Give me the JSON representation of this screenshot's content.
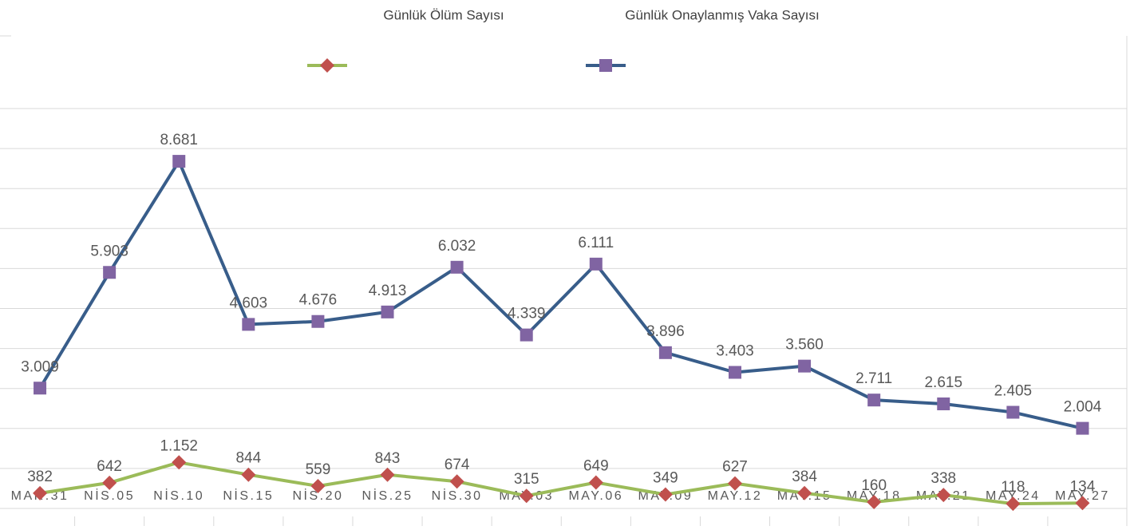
{
  "chart_data": {
    "type": "line",
    "categories": [
      "MAR.31",
      "NİS.05",
      "NİS.10",
      "NİS.15",
      "NİS.20",
      "NİS.25",
      "NİS.30",
      "MAY.03",
      "MAY.06",
      "MAY.09",
      "MAY.12",
      "MAY.15",
      "MAY.18",
      "MAY.21",
      "MAY.24",
      "MAY.27"
    ],
    "series": [
      {
        "name": "Günlük Ölüm Sayısı",
        "color": "#9bbb59",
        "marker_color": "#c0504d",
        "marker": "diamond",
        "values": [
          382,
          642,
          1152,
          844,
          559,
          843,
          674,
          315,
          649,
          349,
          627,
          384,
          160,
          338,
          118,
          134
        ],
        "value_labels": [
          "382",
          "642",
          "1.152",
          "844",
          "559",
          "843",
          "674",
          "315",
          "649",
          "349",
          "627",
          "384",
          "160",
          "338",
          "118",
          "134"
        ]
      },
      {
        "name": "Günlük Onaylanmış Vaka Sayısı",
        "color": "#385d8a",
        "marker_color": "#8064a2",
        "marker": "square",
        "values": [
          3009,
          5903,
          8681,
          4603,
          4676,
          4913,
          6032,
          4339,
          6111,
          3896,
          3403,
          3560,
          2711,
          2615,
          2405,
          2004
        ],
        "value_labels": [
          "3.009",
          "5.903",
          "8.681",
          "4.603",
          "4.676",
          "4.913",
          "6.032",
          "4.339",
          "6.111",
          "3.896",
          "3.403",
          "3.560",
          "2.711",
          "2.615",
          "2.405",
          "2.004"
        ]
      }
    ],
    "ylim": [
      0,
      10000
    ],
    "yticks": [
      0,
      1000,
      2000,
      3000,
      4000,
      5000,
      6000,
      7000,
      8000,
      9000,
      10000
    ],
    "grid": true
  }
}
